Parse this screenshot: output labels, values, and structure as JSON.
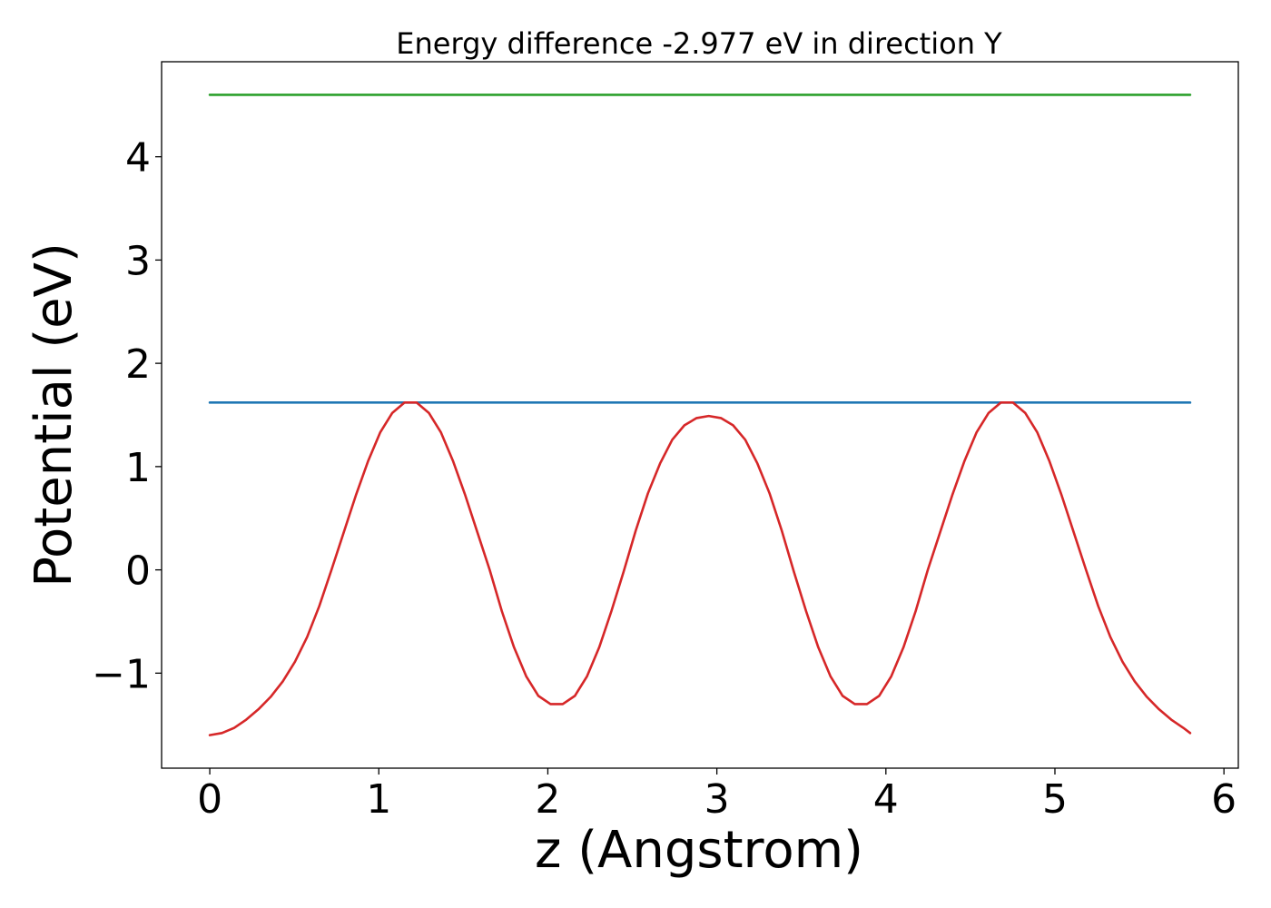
{
  "chart_data": {
    "type": "line",
    "title": "Energy difference -2.977 eV in direction Y",
    "xlabel": "z (Angstrom)",
    "ylabel": "Potential (eV)",
    "xlim": [
      -0.285,
      6.085
    ],
    "ylim": [
      -1.92,
      4.92
    ],
    "xticks": [
      0,
      1,
      2,
      3,
      4,
      5,
      6
    ],
    "xtick_labels": [
      "0",
      "1",
      "2",
      "3",
      "4",
      "5",
      "6"
    ],
    "yticks": [
      -1,
      0,
      1,
      2,
      3,
      4
    ],
    "ytick_labels": [
      "−1",
      "0",
      "1",
      "2",
      "3",
      "4"
    ],
    "grid": false,
    "series": [
      {
        "color": "#d62728",
        "x": [
          0.0,
          0.072,
          0.144,
          0.216,
          0.288,
          0.36,
          0.432,
          0.504,
          0.576,
          0.648,
          0.72,
          0.792,
          0.864,
          0.936,
          1.008,
          1.08,
          1.152,
          1.224,
          1.296,
          1.368,
          1.44,
          1.512,
          1.584,
          1.656,
          1.728,
          1.8,
          1.872,
          1.944,
          2.016,
          2.088,
          2.16,
          2.232,
          2.304,
          2.376,
          2.448,
          2.52,
          2.592,
          2.664,
          2.736,
          2.808,
          2.88,
          2.952,
          3.024,
          3.096,
          3.168,
          3.24,
          3.312,
          3.384,
          3.456,
          3.528,
          3.6,
          3.672,
          3.744,
          3.816,
          3.888,
          3.96,
          4.032,
          4.104,
          4.176,
          4.248,
          4.32,
          4.392,
          4.464,
          4.536,
          4.608,
          4.68,
          4.752,
          4.824,
          4.896,
          4.968,
          5.04,
          5.112,
          5.184,
          5.256,
          5.328,
          5.4,
          5.472,
          5.544,
          5.616,
          5.688,
          5.76,
          5.8
        ],
        "values": [
          -1.6,
          -1.58,
          -1.53,
          -1.45,
          -1.35,
          -1.23,
          -1.08,
          -0.89,
          -0.65,
          -0.35,
          0.0,
          0.36,
          0.72,
          1.05,
          1.33,
          1.52,
          1.62,
          1.62,
          1.52,
          1.33,
          1.05,
          0.72,
          0.36,
          0.0,
          -0.4,
          -0.75,
          -1.03,
          -1.22,
          -1.3,
          -1.3,
          -1.22,
          -1.03,
          -0.75,
          -0.4,
          -0.02,
          0.38,
          0.74,
          1.03,
          1.26,
          1.4,
          1.47,
          1.49,
          1.47,
          1.4,
          1.26,
          1.03,
          0.74,
          0.38,
          -0.02,
          -0.4,
          -0.75,
          -1.03,
          -1.22,
          -1.3,
          -1.3,
          -1.22,
          -1.03,
          -0.75,
          -0.4,
          0.0,
          0.36,
          0.72,
          1.05,
          1.33,
          1.52,
          1.62,
          1.62,
          1.52,
          1.33,
          1.05,
          0.72,
          0.36,
          0.0,
          -0.35,
          -0.65,
          -0.89,
          -1.08,
          -1.23,
          -1.35,
          -1.45,
          -1.53,
          -1.58
        ]
      },
      {
        "color": "#1f77b4",
        "x": [
          0.0,
          5.8
        ],
        "values": [
          1.62,
          1.62
        ]
      },
      {
        "color": "#2ca02c",
        "x": [
          0.0,
          5.8
        ],
        "values": [
          4.6,
          4.6
        ]
      }
    ]
  }
}
